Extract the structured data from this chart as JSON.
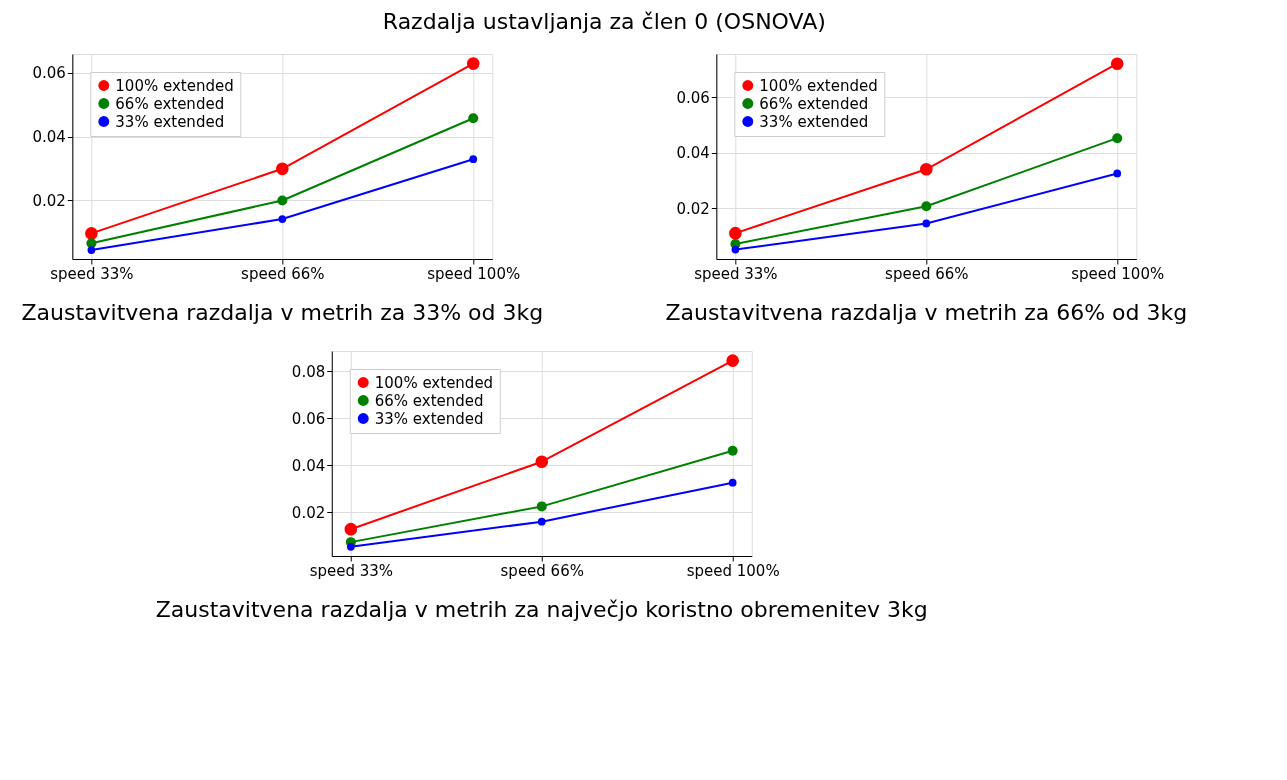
{
  "chart_data": [
    {
      "type": "line",
      "title": "Zaustavitvena razdalja v metrih za 33% od 3kg",
      "annotations": [
        "Razdalja ustavljanja za člen 0 (OSNOVA)"
      ],
      "categories": [
        "speed 33%",
        "speed 66%",
        "speed 100%"
      ],
      "series": [
        {
          "name": "100% extended",
          "color": "#ff0000",
          "values": [
            0.0097,
            0.0299,
            0.0628
          ]
        },
        {
          "name": "66% extended",
          "color": "#008000",
          "values": [
            0.0066,
            0.02,
            0.0457
          ]
        },
        {
          "name": "33% extended",
          "color": "#0000ff",
          "values": [
            0.0045,
            0.0142,
            0.0329
          ]
        }
      ],
      "ylim": [
        0.0017,
        0.0658
      ],
      "yticks": [
        0.02,
        0.04,
        0.06
      ],
      "grid": true,
      "legend": "top left",
      "marker": "circle",
      "line_style": "solid"
    },
    {
      "type": "line",
      "title": "Zaustavitvena razdalja v metrih za 66% od 3kg",
      "categories": [
        "speed 33%",
        "speed 66%",
        "speed 100%"
      ],
      "series": [
        {
          "name": "100% extended",
          "color": "#ff0000",
          "values": [
            0.011,
            0.034,
            0.072
          ]
        },
        {
          "name": "66% extended",
          "color": "#008000",
          "values": [
            0.0071,
            0.0207,
            0.0452
          ]
        },
        {
          "name": "33% extended",
          "color": "#0000ff",
          "values": [
            0.0051,
            0.0145,
            0.0325
          ]
        }
      ],
      "ylim": [
        0.0017,
        0.0755
      ],
      "yticks": [
        0.02,
        0.04,
        0.06
      ],
      "grid": true,
      "legend": "top left",
      "marker": "circle",
      "line_style": "solid"
    },
    {
      "type": "line",
      "title": "Zaustavitvena razdalja v metrih za največjo koristno obremenitev 3kg",
      "categories": [
        "speed 33%",
        "speed 66%",
        "speed 100%"
      ],
      "series": [
        {
          "name": "100% extended",
          "color": "#ff0000",
          "values": [
            0.0128,
            0.0415,
            0.0845
          ]
        },
        {
          "name": "66% extended",
          "color": "#008000",
          "values": [
            0.0073,
            0.0225,
            0.0462
          ]
        },
        {
          "name": "33% extended",
          "color": "#0000ff",
          "values": [
            0.0053,
            0.016,
            0.0326
          ]
        }
      ],
      "ylim": [
        0.0014,
        0.0886
      ],
      "yticks": [
        0.02,
        0.04,
        0.06,
        0.08
      ],
      "grid": true,
      "legend": "top left",
      "marker": "circle",
      "line_style": "solid"
    }
  ]
}
